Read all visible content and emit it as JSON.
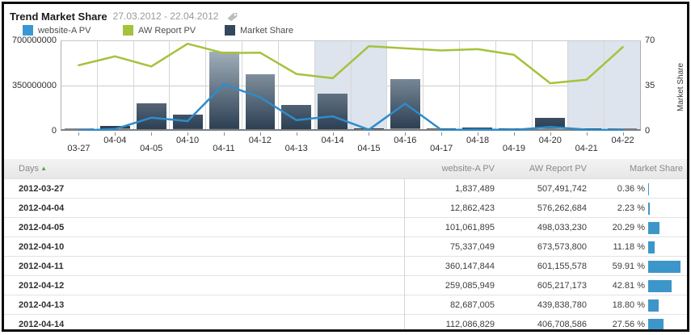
{
  "header": {
    "title": "Trend Market Share",
    "date_range": "27.03.2012 - 22.04.2012"
  },
  "legend": [
    {
      "label": "website-A PV",
      "color": "#3b97d3"
    },
    {
      "label": "AW Report PV",
      "color": "#a5c23b"
    },
    {
      "label": "Market Share",
      "color": "#34485c"
    }
  ],
  "chart_data": {
    "type": "combo-bar-line",
    "categories": [
      "03-27",
      "04-04",
      "04-05",
      "04-10",
      "04-11",
      "04-12",
      "04-13",
      "04-14",
      "04-15",
      "04-16",
      "04-17",
      "04-18",
      "04-19",
      "04-20",
      "04-21",
      "04-22"
    ],
    "weekend_shaded": [
      "04-14",
      "04-15",
      "04-21",
      "04-22"
    ],
    "series": [
      {
        "name": "website-A PV",
        "type": "line",
        "axis": "left",
        "color": "#2e8cca",
        "values_millions": [
          1.8,
          12.9,
          101.1,
          75.3,
          360.1,
          259.1,
          82.7,
          112.1,
          8,
          210,
          6,
          10,
          6,
          30,
          9,
          5
        ]
      },
      {
        "name": "AW Report PV",
        "type": "line",
        "axis": "left",
        "color": "#a5c23b",
        "values_millions": [
          507.5,
          576.3,
          498.0,
          673.6,
          601.2,
          605.2,
          439.8,
          406.7,
          655,
          638,
          622,
          632,
          588,
          368,
          395,
          648
        ]
      },
      {
        "name": "Market Share",
        "type": "bar",
        "axis": "right",
        "values_percent": [
          0.36,
          2.23,
          20.29,
          11.18,
          59.91,
          42.81,
          18.8,
          27.56,
          0.8,
          38.5,
          0.5,
          1.5,
          0.4,
          8.5,
          0.9,
          0.4
        ]
      }
    ],
    "left_axis": {
      "ticks": [
        "700000000",
        "350000000",
        "0"
      ],
      "max_millions": 700
    },
    "right_axis": {
      "ticks": [
        "70",
        "35",
        "0"
      ],
      "max": 70,
      "label": "Market Share"
    },
    "grid": true,
    "legend_position": "top"
  },
  "table": {
    "columns": {
      "days": "Days",
      "website_a_pv": "website-A PV",
      "aw_report_pv": "AW Report PV",
      "market_share": "Market Share"
    },
    "sort": {
      "column": "Days",
      "direction": "asc",
      "glyph": "▲"
    },
    "rows": [
      {
        "day": "2012-03-27",
        "website_a_pv": "1,837,489",
        "aw_report_pv": "507,491,742",
        "market_share": "0.36 %",
        "market_share_pct": 0.36
      },
      {
        "day": "2012-04-04",
        "website_a_pv": "12,862,423",
        "aw_report_pv": "576,262,684",
        "market_share": "2.23 %",
        "market_share_pct": 2.23
      },
      {
        "day": "2012-04-05",
        "website_a_pv": "101,061,895",
        "aw_report_pv": "498,033,230",
        "market_share": "20.29 %",
        "market_share_pct": 20.29
      },
      {
        "day": "2012-04-10",
        "website_a_pv": "75,337,049",
        "aw_report_pv": "673,573,800",
        "market_share": "11.18 %",
        "market_share_pct": 11.18
      },
      {
        "day": "2012-04-11",
        "website_a_pv": "360,147,844",
        "aw_report_pv": "601,155,578",
        "market_share": "59.91 %",
        "market_share_pct": 59.91
      },
      {
        "day": "2012-04-12",
        "website_a_pv": "259,085,949",
        "aw_report_pv": "605,217,173",
        "market_share": "42.81 %",
        "market_share_pct": 42.81
      },
      {
        "day": "2012-04-13",
        "website_a_pv": "82,687,005",
        "aw_report_pv": "439,838,780",
        "market_share": "18.80 %",
        "market_share_pct": 18.8
      },
      {
        "day": "2012-04-14",
        "website_a_pv": "112,086,829",
        "aw_report_pv": "406,708,586",
        "market_share": "27.56 %",
        "market_share_pct": 27.56
      }
    ]
  },
  "colors": {
    "line_blue": "#2e8cca",
    "line_green": "#a5c23b",
    "bar_top": "#b4c1cb",
    "bar_bottom": "#2c3f53",
    "weekend_band": "#dde4ee",
    "table_bar_blue": "#3d96c9"
  }
}
